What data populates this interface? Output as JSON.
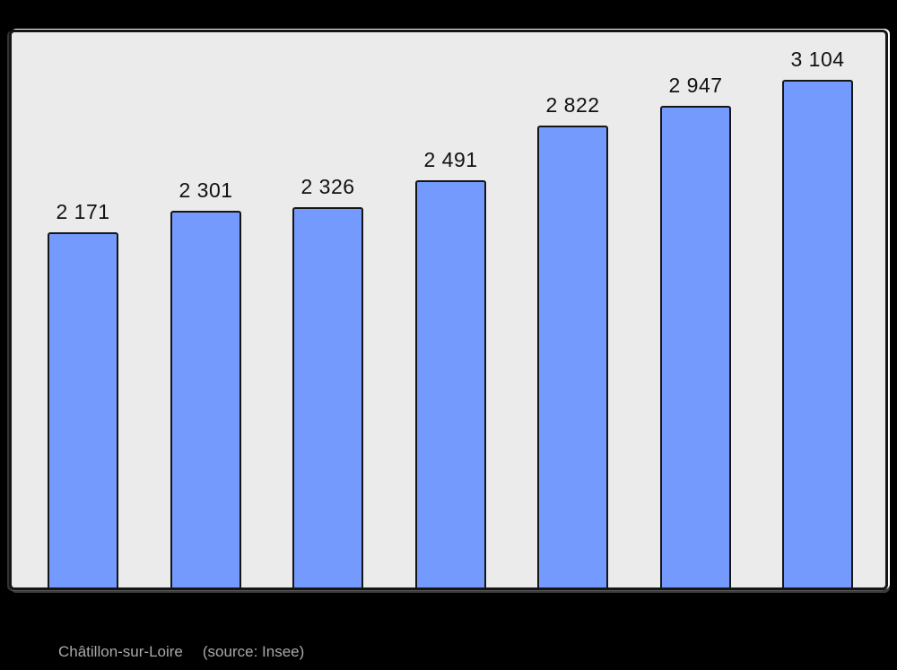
{
  "chart_data": {
    "type": "bar",
    "title": "",
    "values": [
      2171,
      2301,
      2326,
      2491,
      2822,
      2947,
      3104
    ],
    "labels": [
      "2 171",
      "2 301",
      "2 326",
      "2 491",
      "2 822",
      "2 947",
      "3 104"
    ],
    "ylim": [
      0,
      3104
    ],
    "baseline_value": 0,
    "grid": "off",
    "legend": "none",
    "x_axis_tick_labels": "none",
    "y_axis_tick_labels": "none",
    "caption_title": "Châtillon-sur-Loire",
    "caption_source": "(source: Insee)",
    "colors": {
      "bar_fill": "#739afc",
      "bar_border": "#151515",
      "plot_background": "#ebebeb",
      "frame_border": "#151515",
      "page_background": "#000000",
      "value_label_text": "#111111",
      "caption_text": "#a9a9a9"
    }
  }
}
